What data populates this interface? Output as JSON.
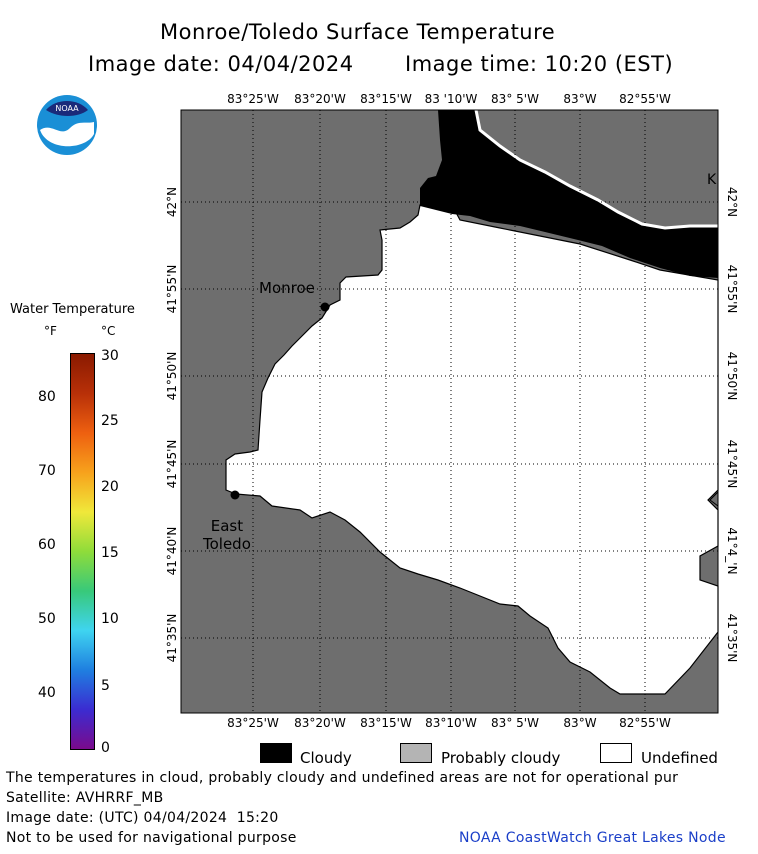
{
  "header": {
    "title": "Monroe/Toledo Surface Temperature",
    "image_date": "Image date: 04/04/2024",
    "image_time": "Image time: 10:20 (EST)"
  },
  "logo": {
    "text": "NOAA"
  },
  "map": {
    "top_lon_labels": [
      "83°25'W",
      "83°20'W",
      "83°15'W",
      "83 '10'W",
      "83° 5'W",
      "83°W",
      "82°55'W"
    ],
    "bottom_lon_labels": [
      "83°25'W",
      "83°20'W",
      "83°15'W",
      "83°10'W",
      "83° 5'W",
      "83°W",
      "82°55'W"
    ],
    "lat_labels_left": [
      "42°N",
      "41°55'N",
      "41°50'N",
      "41°45'N",
      "41°40'N",
      "41°35'N"
    ],
    "lat_labels_right": [
      "42°N",
      "41°55'N",
      "41°50'N",
      "41°45'N",
      "41°4_'N",
      "41°35'N"
    ],
    "cities": [
      {
        "name": "Monroe"
      },
      {
        "name": "East\nToledo"
      }
    ],
    "edge_letter": "K",
    "colors": {
      "land": "#6e6e6e",
      "cloud": "#000000",
      "water_undefined": "#ffffff"
    }
  },
  "colorbar": {
    "title": "Water Temperature",
    "unit_f": "°F",
    "unit_c": "°C",
    "f_ticks": [
      "80",
      "70",
      "60",
      "50",
      "40"
    ],
    "c_ticks": [
      "30",
      "25",
      "20",
      "15",
      "10",
      "5",
      "0"
    ],
    "colors": [
      "#7a0a8c",
      "#3b2cd1",
      "#1f7fe0",
      "#3fd4f0",
      "#38c97a",
      "#8fdc3a",
      "#f0e83a",
      "#f7a21c",
      "#ee6010",
      "#b83008",
      "#8a1a00"
    ]
  },
  "legend": {
    "cloudy": "Cloudy",
    "probably_cloudy": "Probably cloudy",
    "undefined": "Undefined"
  },
  "footer": {
    "line1": "The temperatures in cloud, probably cloudy and undefined areas are not for operational pur",
    "line2": "Satellite: AVHRRF_MB",
    "line3": "Image date: (UTC) 04/04/2024  15:20",
    "line4": "Not to be used for navigational purpose",
    "credit": "NOAA CoastWatch Great Lakes Node"
  }
}
